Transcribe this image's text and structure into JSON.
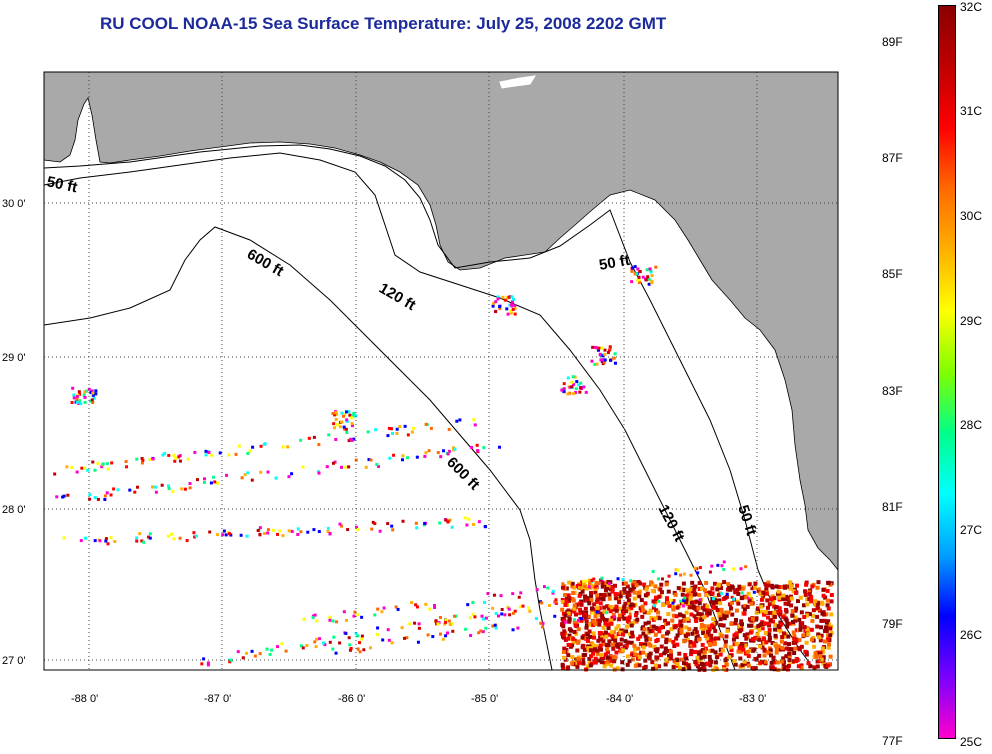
{
  "title": "RU COOL  NOAA-15  Sea Surface Temperature:  July 25, 2008 2202 GMT",
  "map": {
    "lat_labels": [
      "30 0'",
      "29 0'",
      "28 0'",
      "27 0'"
    ],
    "lon_labels": [
      "-88 0'",
      "-87 0'",
      "-86 0'",
      "-85 0'",
      "-84 0'",
      "-83 0'"
    ],
    "contour_labels": [
      "50 ft",
      "600 ft",
      "120 ft",
      "50 ft",
      "600 ft",
      "120 ft",
      "50 ft"
    ],
    "land_color": "#a9a9a9",
    "water_color": "#ffffff"
  },
  "colorbar": {
    "celsius_labels": [
      "32C",
      "31C",
      "30C",
      "29C",
      "28C",
      "27C",
      "26C",
      "25C"
    ],
    "fahrenheit_labels": [
      "89F",
      "87F",
      "85F",
      "83F",
      "81F",
      "79F",
      "77F"
    ],
    "gradient_colors": [
      "#ff00cc",
      "#7a00ff",
      "#0000ff",
      "#00a0ff",
      "#00ffff",
      "#00ff88",
      "#80ff00",
      "#ffff00",
      "#ffb000",
      "#ff6a00",
      "#ff0000",
      "#c00000",
      "#8a0000"
    ]
  }
}
